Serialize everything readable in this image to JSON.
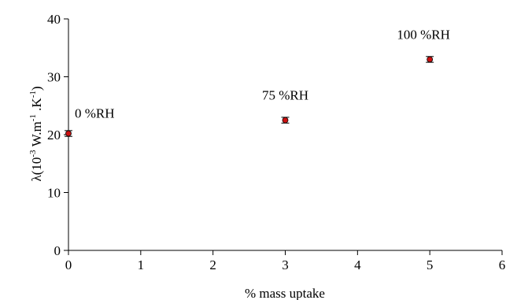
{
  "chart_data": {
    "type": "scatter",
    "title": "",
    "xlabel": "% mass uptake",
    "ylabel": {
      "prefix": "λ(10",
      "exp1": "-3",
      "mid1": " W.m",
      "exp2": "-1",
      "mid2": " .K",
      "exp3": "-1",
      "suffix": ")"
    },
    "xlim": [
      0,
      6
    ],
    "ylim": [
      0,
      40
    ],
    "xticks": [
      "0",
      "1",
      "2",
      "3",
      "4",
      "5",
      "6"
    ],
    "yticks": [
      "0",
      "10",
      "20",
      "30",
      "40"
    ],
    "grid": false,
    "legend": "none",
    "series": [
      {
        "x": [
          0,
          3,
          5
        ],
        "y": [
          20.2,
          22.5,
          33.0
        ],
        "error": [
          0.5,
          0.5,
          0.5
        ],
        "annotations": [
          "0 %RH",
          "75 %RH",
          "100 %RH"
        ]
      }
    ],
    "colors": {
      "marker_fill": "#cc1111",
      "marker_stroke": "#000000",
      "axis": "#000000"
    }
  }
}
